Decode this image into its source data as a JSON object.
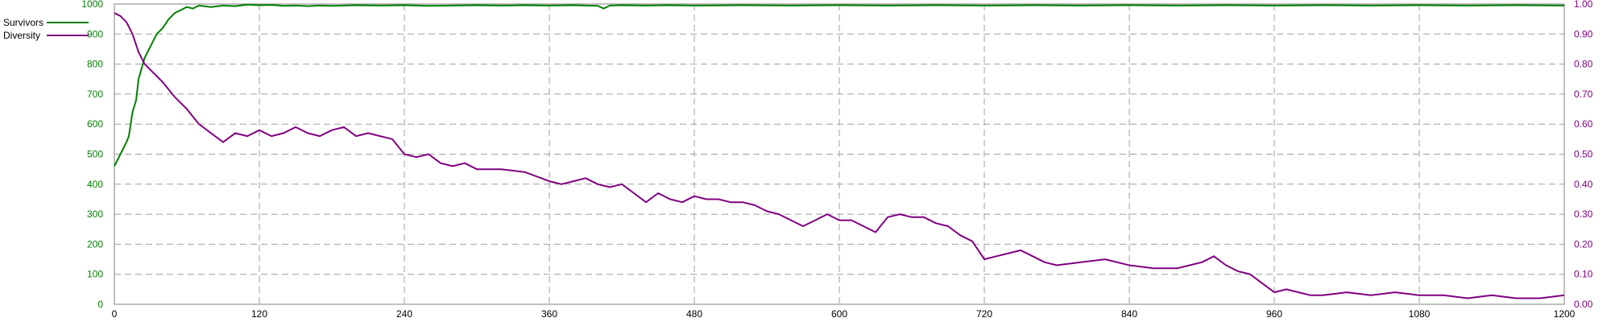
{
  "chart_data": {
    "type": "line",
    "x_ticks": [
      0,
      120,
      240,
      360,
      480,
      600,
      720,
      840,
      960,
      1080,
      1200
    ],
    "xlim": [
      0,
      1200
    ],
    "ylim_left": [
      0,
      1000
    ],
    "ylim_right": [
      0.0,
      1.0
    ],
    "y_ticks_left": [
      "0",
      "100",
      "200",
      "300",
      "400",
      "500",
      "600",
      "700",
      "800",
      "900",
      "1000"
    ],
    "y_ticks_right": [
      "0.00",
      "0.10",
      "0.20",
      "0.30",
      "0.40",
      "0.50",
      "0.60",
      "0.70",
      "0.80",
      "0.90",
      "1.00"
    ],
    "grid": true,
    "legend_position": "top-left",
    "series": [
      {
        "name": "Survivors",
        "axis": "left",
        "color": "#008000",
        "x": [
          0,
          5,
          10,
          12,
          15,
          18,
          20,
          25,
          30,
          35,
          40,
          45,
          50,
          55,
          60,
          65,
          70,
          80,
          90,
          100,
          110,
          120,
          130,
          140,
          150,
          160,
          170,
          180,
          200,
          220,
          240,
          260,
          280,
          300,
          320,
          340,
          360,
          380,
          400,
          405,
          410,
          420,
          440,
          460,
          480,
          520,
          560,
          600,
          640,
          680,
          720,
          760,
          800,
          840,
          880,
          920,
          960,
          1000,
          1040,
          1080,
          1120,
          1160,
          1200
        ],
        "values": [
          460,
          500,
          540,
          560,
          640,
          680,
          750,
          820,
          860,
          900,
          920,
          950,
          970,
          980,
          990,
          985,
          995,
          990,
          995,
          993,
          998,
          996,
          997,
          994,
          995,
          993,
          995,
          994,
          996,
          995,
          996,
          994,
          995,
          996,
          995,
          996,
          995,
          996,
          994,
          985,
          995,
          996,
          995,
          996,
          995,
          996,
          995,
          996,
          995,
          996,
          995,
          996,
          995,
          996,
          995,
          996,
          995,
          996,
          995,
          996,
          995,
          996,
          995
        ]
      },
      {
        "name": "Diversity",
        "axis": "right",
        "color": "#800080",
        "x": [
          0,
          5,
          10,
          15,
          20,
          25,
          30,
          40,
          50,
          60,
          70,
          80,
          90,
          100,
          110,
          120,
          130,
          140,
          150,
          160,
          170,
          180,
          190,
          200,
          210,
          220,
          230,
          240,
          250,
          260,
          270,
          280,
          290,
          300,
          320,
          340,
          360,
          370,
          380,
          390,
          400,
          410,
          420,
          430,
          440,
          450,
          460,
          470,
          480,
          490,
          500,
          510,
          520,
          530,
          540,
          550,
          560,
          570,
          580,
          590,
          600,
          610,
          620,
          630,
          640,
          650,
          660,
          670,
          680,
          690,
          700,
          710,
          720,
          730,
          740,
          750,
          760,
          770,
          780,
          800,
          820,
          840,
          860,
          870,
          880,
          890,
          900,
          910,
          920,
          930,
          940,
          950,
          960,
          970,
          980,
          990,
          1000,
          1020,
          1040,
          1060,
          1080,
          1100,
          1120,
          1140,
          1160,
          1180,
          1200
        ],
        "values": [
          0.97,
          0.96,
          0.94,
          0.9,
          0.84,
          0.8,
          0.78,
          0.74,
          0.69,
          0.65,
          0.6,
          0.57,
          0.54,
          0.57,
          0.56,
          0.58,
          0.56,
          0.57,
          0.59,
          0.57,
          0.56,
          0.58,
          0.59,
          0.56,
          0.57,
          0.56,
          0.55,
          0.5,
          0.49,
          0.5,
          0.47,
          0.46,
          0.47,
          0.45,
          0.45,
          0.44,
          0.41,
          0.4,
          0.41,
          0.42,
          0.4,
          0.39,
          0.4,
          0.37,
          0.34,
          0.37,
          0.35,
          0.34,
          0.36,
          0.35,
          0.35,
          0.34,
          0.34,
          0.33,
          0.31,
          0.3,
          0.28,
          0.26,
          0.28,
          0.3,
          0.28,
          0.28,
          0.26,
          0.24,
          0.29,
          0.3,
          0.29,
          0.29,
          0.27,
          0.26,
          0.23,
          0.21,
          0.15,
          0.16,
          0.17,
          0.18,
          0.16,
          0.14,
          0.13,
          0.14,
          0.15,
          0.13,
          0.12,
          0.12,
          0.12,
          0.13,
          0.14,
          0.16,
          0.13,
          0.11,
          0.1,
          0.07,
          0.04,
          0.05,
          0.04,
          0.03,
          0.03,
          0.04,
          0.03,
          0.04,
          0.03,
          0.03,
          0.02,
          0.03,
          0.02,
          0.02,
          0.03
        ]
      }
    ]
  }
}
